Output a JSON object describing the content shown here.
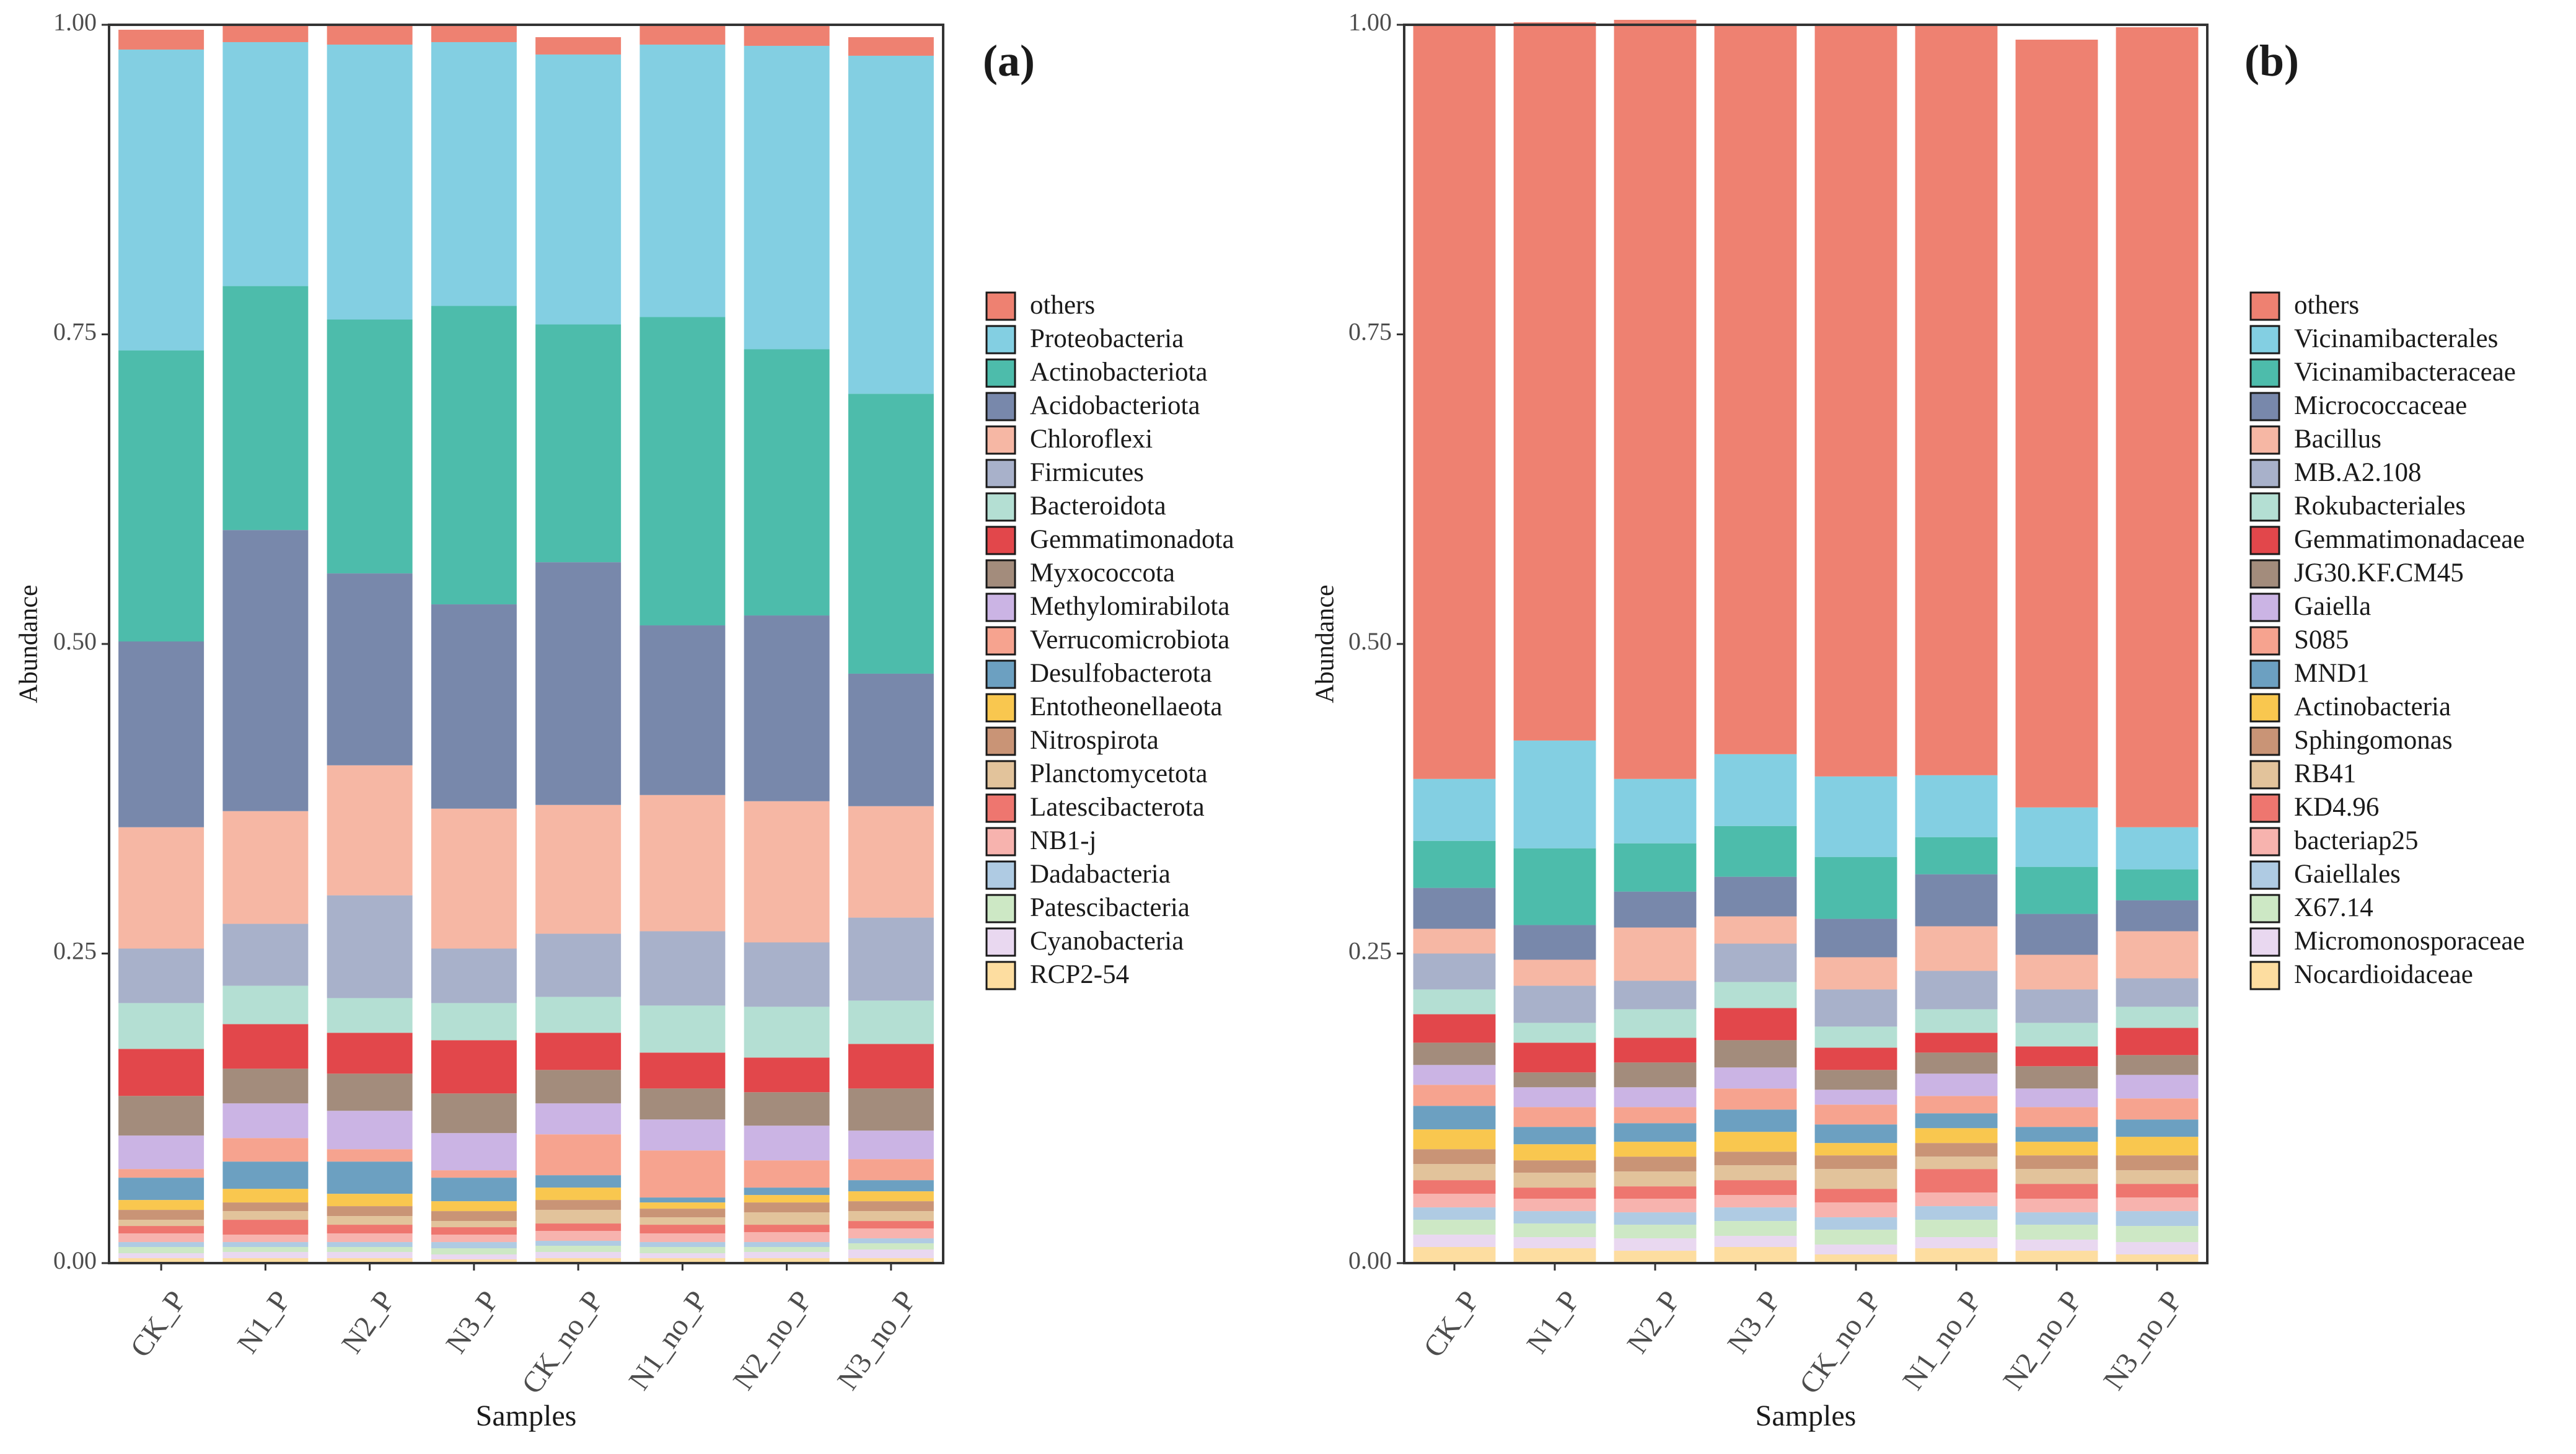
{
  "chart_data": [
    {
      "type": "bar",
      "stacked": true,
      "panel": "(a)",
      "xlabel": "Samples",
      "ylabel": "Abundance",
      "ylim": [
        0,
        1
      ],
      "yticks": [
        "0.00",
        "0.25",
        "0.50",
        "0.75",
        "1.00"
      ],
      "categories": [
        "CK_P",
        "N1_P",
        "N2_P",
        "N3_P",
        "CK_no_P",
        "N1_no_P",
        "N2_no_P",
        "N3_no_P"
      ],
      "series": [
        {
          "name": "RCP2-54",
          "color": "#FDDDA0",
          "values": [
            0.004,
            0.004,
            0.004,
            0.003,
            0.004,
            0.004,
            0.004,
            0.004
          ]
        },
        {
          "name": "Cyanobacteria",
          "color": "#E9D8F0",
          "values": [
            0.004,
            0.005,
            0.005,
            0.004,
            0.005,
            0.004,
            0.005,
            0.007
          ]
        },
        {
          "name": "Patescibacteria",
          "color": "#CDE8C5",
          "values": [
            0.005,
            0.004,
            0.004,
            0.005,
            0.005,
            0.005,
            0.004,
            0.005
          ]
        },
        {
          "name": "Dadabacteria",
          "color": "#AFCBE3",
          "values": [
            0.004,
            0.004,
            0.004,
            0.005,
            0.004,
            0.004,
            0.004,
            0.004
          ]
        },
        {
          "name": "NB1-j",
          "color": "#F7B3AE",
          "values": [
            0.007,
            0.006,
            0.007,
            0.006,
            0.008,
            0.007,
            0.008,
            0.008
          ]
        },
        {
          "name": "Latescibacterota",
          "color": "#EE766F",
          "values": [
            0.006,
            0.012,
            0.007,
            0.006,
            0.006,
            0.007,
            0.006,
            0.006
          ]
        },
        {
          "name": "Planctomycetota",
          "color": "#E2C39B",
          "values": [
            0.005,
            0.007,
            0.007,
            0.005,
            0.011,
            0.006,
            0.01,
            0.008
          ]
        },
        {
          "name": "Nitrospirota",
          "color": "#C99476",
          "values": [
            0.008,
            0.007,
            0.008,
            0.008,
            0.008,
            0.007,
            0.008,
            0.008
          ]
        },
        {
          "name": "Entotheonellaeota",
          "color": "#F9C74F",
          "values": [
            0.008,
            0.011,
            0.01,
            0.008,
            0.01,
            0.005,
            0.006,
            0.008
          ]
        },
        {
          "name": "Desulfobacterota",
          "color": "#6CA0C1",
          "values": [
            0.018,
            0.022,
            0.026,
            0.019,
            0.01,
            0.004,
            0.006,
            0.009
          ]
        },
        {
          "name": "Verrucomicrobiota",
          "color": "#F6A38F",
          "values": [
            0.007,
            0.019,
            0.01,
            0.006,
            0.033,
            0.038,
            0.022,
            0.017
          ]
        },
        {
          "name": "Methylomirabilota",
          "color": "#CBB4E4",
          "values": [
            0.027,
            0.028,
            0.031,
            0.03,
            0.025,
            0.025,
            0.028,
            0.023
          ]
        },
        {
          "name": "Myxococcota",
          "color": "#A38C7C",
          "values": [
            0.032,
            0.028,
            0.03,
            0.032,
            0.027,
            0.025,
            0.027,
            0.034
          ]
        },
        {
          "name": "Gemmatimonadota",
          "color": "#E2474B",
          "values": [
            0.038,
            0.036,
            0.033,
            0.043,
            0.03,
            0.029,
            0.028,
            0.036
          ]
        },
        {
          "name": "Bacteroidota",
          "color": "#B4DFD3",
          "values": [
            0.037,
            0.031,
            0.028,
            0.03,
            0.029,
            0.038,
            0.041,
            0.035
          ]
        },
        {
          "name": "Firmicutes",
          "color": "#A8B1CA",
          "values": [
            0.044,
            0.05,
            0.083,
            0.044,
            0.051,
            0.06,
            0.052,
            0.067
          ]
        },
        {
          "name": "Chloroflexi",
          "color": "#F6B7A4",
          "values": [
            0.098,
            0.091,
            0.105,
            0.113,
            0.104,
            0.11,
            0.114,
            0.09
          ]
        },
        {
          "name": "Acidobacteriota",
          "color": "#7888AB",
          "values": [
            0.15,
            0.227,
            0.155,
            0.165,
            0.196,
            0.137,
            0.15,
            0.107
          ]
        },
        {
          "name": "Actinobacteriota",
          "color": "#4DBCAB",
          "values": [
            0.235,
            0.197,
            0.205,
            0.241,
            0.192,
            0.249,
            0.215,
            0.226
          ]
        },
        {
          "name": "Proteobacteria",
          "color": "#83CFE2",
          "values": [
            0.243,
            0.197,
            0.222,
            0.213,
            0.218,
            0.22,
            0.245,
            0.273
          ]
        },
        {
          "name": "others",
          "color": "#EE8171",
          "values": [
            0.016,
            0.014,
            0.015,
            0.014,
            0.014,
            0.016,
            0.017,
            0.015
          ]
        }
      ],
      "legend": [
        "others",
        "Proteobacteria",
        "Actinobacteriota",
        "Acidobacteriota",
        "Chloroflexi",
        "Firmicutes",
        "Bacteroidota",
        "Gemmatimonadota",
        "Myxococcota",
        "Methylomirabilota",
        "Verrucomicrobiota",
        "Desulfobacterota",
        "Entotheonellaeota",
        "Nitrospirota",
        "Planctomycetota",
        "Latescibacterota",
        "NB1-j",
        "Dadabacteria",
        "Patescibacteria",
        "Cyanobacteria",
        "RCP2-54"
      ]
    },
    {
      "type": "bar",
      "stacked": true,
      "panel": "(b)",
      "xlabel": "Samples",
      "ylabel": "Abundance",
      "ylim": [
        0,
        1
      ],
      "yticks": [
        "0.00",
        "0.25",
        "0.50",
        "0.75",
        "1.00"
      ],
      "categories": [
        "CK_P",
        "N1_P",
        "N2_P",
        "N3_P",
        "CK_no_P",
        "N1_no_P",
        "N2_no_P",
        "N3_no_P"
      ],
      "series": [
        {
          "name": "Nocardioidaceae",
          "color": "#FDDDA0",
          "values": [
            0.013,
            0.012,
            0.01,
            0.013,
            0.007,
            0.012,
            0.01,
            0.007
          ]
        },
        {
          "name": "Micromonosporaceae",
          "color": "#E9D8F0",
          "values": [
            0.01,
            0.009,
            0.01,
            0.009,
            0.008,
            0.009,
            0.009,
            0.01
          ]
        },
        {
          "name": "X67.14",
          "color": "#CDE8C5",
          "values": [
            0.012,
            0.011,
            0.011,
            0.012,
            0.012,
            0.014,
            0.012,
            0.013
          ]
        },
        {
          "name": "Gaiellales",
          "color": "#AFCBE3",
          "values": [
            0.01,
            0.01,
            0.01,
            0.011,
            0.01,
            0.011,
            0.01,
            0.012
          ]
        },
        {
          "name": "bacteriap25",
          "color": "#F7B3AE",
          "values": [
            0.011,
            0.01,
            0.011,
            0.01,
            0.012,
            0.011,
            0.011,
            0.011
          ]
        },
        {
          "name": "KD4.96",
          "color": "#EE766F",
          "values": [
            0.011,
            0.009,
            0.01,
            0.012,
            0.011,
            0.019,
            0.012,
            0.011
          ]
        },
        {
          "name": "RB41",
          "color": "#E2C39B",
          "values": [
            0.013,
            0.012,
            0.012,
            0.012,
            0.016,
            0.01,
            0.012,
            0.011
          ]
        },
        {
          "name": "Sphingomonas",
          "color": "#C99476",
          "values": [
            0.012,
            0.01,
            0.012,
            0.011,
            0.011,
            0.011,
            0.011,
            0.012
          ]
        },
        {
          "name": "Actinobacteria",
          "color": "#F9C74F",
          "values": [
            0.016,
            0.013,
            0.012,
            0.016,
            0.01,
            0.012,
            0.011,
            0.015
          ]
        },
        {
          "name": "MND1",
          "color": "#6CA0C1",
          "values": [
            0.019,
            0.014,
            0.015,
            0.018,
            0.015,
            0.012,
            0.012,
            0.014
          ]
        },
        {
          "name": "S085",
          "color": "#F6A38F",
          "values": [
            0.017,
            0.016,
            0.013,
            0.017,
            0.016,
            0.014,
            0.016,
            0.017
          ]
        },
        {
          "name": "Gaiella",
          "color": "#CBB4E4",
          "values": [
            0.016,
            0.016,
            0.016,
            0.017,
            0.012,
            0.018,
            0.015,
            0.019
          ]
        },
        {
          "name": "JG30.KF.CM45",
          "color": "#A38C7C",
          "values": [
            0.018,
            0.012,
            0.02,
            0.022,
            0.016,
            0.017,
            0.018,
            0.016
          ]
        },
        {
          "name": "Gemmatimonadaceae",
          "color": "#E2474B",
          "values": [
            0.023,
            0.024,
            0.02,
            0.026,
            0.018,
            0.016,
            0.016,
            0.022
          ]
        },
        {
          "name": "Rokubacteriales",
          "color": "#B4DFD3",
          "values": [
            0.02,
            0.016,
            0.023,
            0.021,
            0.017,
            0.019,
            0.019,
            0.017
          ]
        },
        {
          "name": "MB.A2.108",
          "color": "#A8B1CA",
          "values": [
            0.029,
            0.03,
            0.023,
            0.031,
            0.03,
            0.031,
            0.027,
            0.023
          ]
        },
        {
          "name": "Bacillus",
          "color": "#F6B7A4",
          "values": [
            0.02,
            0.021,
            0.043,
            0.022,
            0.026,
            0.036,
            0.028,
            0.038
          ]
        },
        {
          "name": "Micrococcaceae",
          "color": "#7888AB",
          "values": [
            0.033,
            0.028,
            0.029,
            0.032,
            0.031,
            0.042,
            0.033,
            0.025
          ]
        },
        {
          "name": "Vicinamibacteraceae",
          "color": "#4DBCAB",
          "values": [
            0.038,
            0.062,
            0.039,
            0.041,
            0.05,
            0.03,
            0.038,
            0.025
          ]
        },
        {
          "name": "Vicinamibacterales",
          "color": "#83CFE2",
          "values": [
            0.05,
            0.087,
            0.052,
            0.058,
            0.065,
            0.05,
            0.048,
            0.034
          ]
        },
        {
          "name": "others",
          "color": "#EE8171",
          "values": [
            0.609,
            0.58,
            0.613,
            0.588,
            0.606,
            0.605,
            0.62,
            0.646
          ]
        }
      ],
      "legend": [
        "others",
        "Vicinamibacterales",
        "Vicinamibacteraceae",
        "Micrococcaceae",
        "Bacillus",
        "MB.A2.108",
        "Rokubacteriales",
        "Gemmatimonadaceae",
        "JG30.KF.CM45",
        "Gaiella",
        "S085",
        "MND1",
        "Actinobacteria",
        "Sphingomonas",
        "RB41",
        "KD4.96",
        "bacteriap25",
        "Gaiellales",
        "X67.14",
        "Micromonosporaceae",
        "Nocardioidaceae"
      ]
    }
  ]
}
